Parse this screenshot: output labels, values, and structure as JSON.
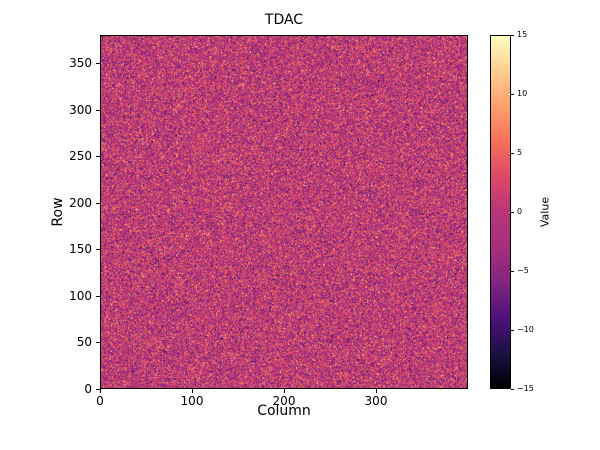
{
  "chart_data": {
    "type": "heatmap",
    "title": "TDAC",
    "xlabel": "Column",
    "ylabel": "Row",
    "colorbar_label": "Value",
    "x_range": [
      0,
      400
    ],
    "y_range": [
      0,
      380
    ],
    "value_range": [
      -15,
      15
    ],
    "grid": {
      "cols": 400,
      "rows": 380
    },
    "x_ticks": [
      {
        "value": 0,
        "label": "0"
      },
      {
        "value": 100,
        "label": "100"
      },
      {
        "value": 200,
        "label": "200"
      },
      {
        "value": 300,
        "label": "300"
      }
    ],
    "y_ticks": [
      {
        "value": 0,
        "label": "0"
      },
      {
        "value": 50,
        "label": "50"
      },
      {
        "value": 100,
        "label": "100"
      },
      {
        "value": 150,
        "label": "150"
      },
      {
        "value": 200,
        "label": "200"
      },
      {
        "value": 250,
        "label": "250"
      },
      {
        "value": 300,
        "label": "300"
      },
      {
        "value": 350,
        "label": "350"
      }
    ],
    "colorbar_ticks": [
      {
        "value": 15,
        "label": "15"
      },
      {
        "value": 10,
        "label": "10"
      },
      {
        "value": 5,
        "label": "5"
      },
      {
        "value": 0,
        "label": "0"
      },
      {
        "value": -5,
        "label": "−5"
      },
      {
        "value": -10,
        "label": "−10"
      },
      {
        "value": -15,
        "label": "−15"
      }
    ],
    "colormap": "magma",
    "colormap_stops": [
      [
        0.0,
        0,
        0,
        4
      ],
      [
        0.1,
        29,
        17,
        71
      ],
      [
        0.2,
        81,
        18,
        124
      ],
      [
        0.3,
        130,
        38,
        129
      ],
      [
        0.4,
        168,
        46,
        125
      ],
      [
        0.5,
        183,
        55,
        121
      ],
      [
        0.6,
        222,
        73,
        104
      ],
      [
        0.7,
        247,
        112,
        92
      ],
      [
        0.8,
        254,
        159,
        109
      ],
      [
        0.9,
        254,
        206,
        145
      ],
      [
        1.0,
        252,
        253,
        191
      ]
    ],
    "data_description": "Per-pixel TDAC values: random noise centered near 0 spanning roughly -15 to 15 over a 400x380 pixel grid",
    "noise": {
      "distribution": "gaussian",
      "mean": 0,
      "stddev": 4.5,
      "clip": [
        -15,
        15
      ],
      "seed": 42
    },
    "colors": {
      "background": "#ffffff",
      "axis": "#000000"
    },
    "legend_position": "right-colorbar",
    "grid_lines": false
  }
}
